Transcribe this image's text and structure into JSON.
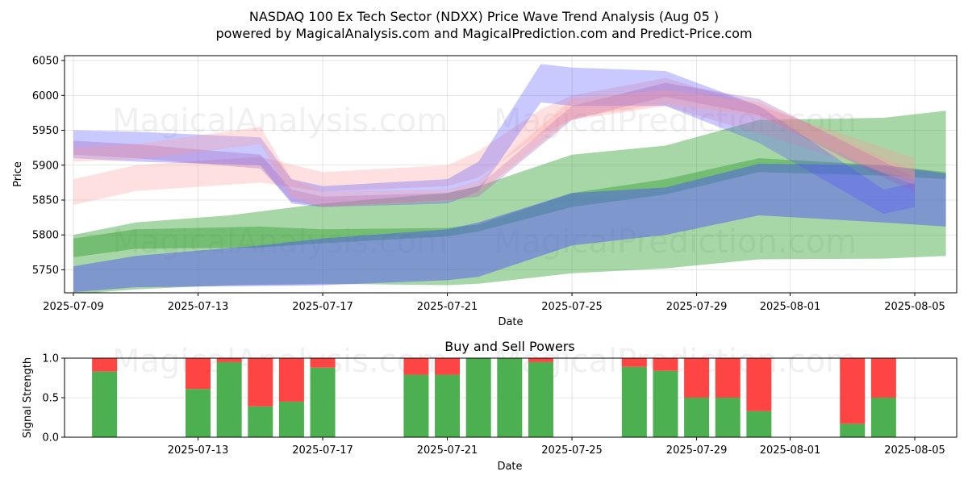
{
  "title_line1": "NASDAQ 100 Ex Tech Sector (NDXX) Price Wave Trend Analysis (Aug 05 )",
  "title_line2": "powered by MagicalAnalysis.com and MagicalPrediction.com and Predict-Price.com",
  "watermarks": [
    "MagicalAnalysis.com",
    "MagicalPrediction.com"
  ],
  "colors": {
    "green": "#4caf50",
    "red": "#ff4444",
    "blue_band": "#4d4dff",
    "red_band": "#ff9999",
    "purple_band": "#9b59b6",
    "green_band": "#2e9d2e"
  },
  "chart_data": [
    {
      "type": "area",
      "title": "",
      "xlabel": "Date",
      "ylabel": "Price",
      "x_ticks": [
        "2025-07-09",
        "2025-07-13",
        "2025-07-17",
        "2025-07-21",
        "2025-07-25",
        "2025-07-29",
        "2025-08-01",
        "2025-08-05"
      ],
      "y_ticks": [
        5750,
        5800,
        5850,
        5900,
        5950,
        6000,
        6050
      ],
      "xlim": [
        "2025-07-08",
        "2025-08-06"
      ],
      "ylim": [
        5717,
        6057
      ],
      "grid": true,
      "series": [
        {
          "color": "green",
          "x": [
            "2025-07-09",
            "2025-07-11",
            "2025-07-14",
            "2025-07-17",
            "2025-07-21",
            "2025-07-22",
            "2025-07-25",
            "2025-07-28",
            "2025-07-31",
            "2025-08-04",
            "2025-08-06"
          ],
          "upper": [
            5800,
            5818,
            5828,
            5845,
            5860,
            5870,
            5915,
            5928,
            5965,
            5968,
            5978
          ],
          "lower": [
            5715,
            5722,
            5728,
            5730,
            5728,
            5730,
            5745,
            5752,
            5765,
            5766,
            5770
          ]
        },
        {
          "color": "green",
          "x": [
            "2025-07-09",
            "2025-07-11",
            "2025-07-15",
            "2025-07-17",
            "2025-07-21",
            "2025-07-22",
            "2025-07-25",
            "2025-07-28",
            "2025-07-31",
            "2025-08-04",
            "2025-08-06"
          ],
          "upper": [
            5795,
            5808,
            5812,
            5808,
            5810,
            5815,
            5860,
            5880,
            5910,
            5900,
            5890
          ],
          "lower": [
            5768,
            5780,
            5782,
            5788,
            5798,
            5805,
            5840,
            5858,
            5890,
            5885,
            5880
          ]
        },
        {
          "color": "blue",
          "x": [
            "2025-07-09",
            "2025-07-11",
            "2025-07-15",
            "2025-07-17",
            "2025-07-21",
            "2025-07-22",
            "2025-07-25",
            "2025-07-28",
            "2025-07-31",
            "2025-08-04",
            "2025-08-06"
          ],
          "upper": [
            5755,
            5770,
            5785,
            5795,
            5808,
            5818,
            5860,
            5868,
            5902,
            5900,
            5888
          ],
          "lower": [
            5718,
            5725,
            5727,
            5728,
            5735,
            5740,
            5785,
            5800,
            5828,
            5818,
            5812
          ]
        },
        {
          "color": "red",
          "x": [
            "2025-07-09",
            "2025-07-11",
            "2025-07-15",
            "2025-07-17",
            "2025-07-21",
            "2025-07-22",
            "2025-07-24",
            "2025-07-25",
            "2025-07-28",
            "2025-07-31",
            "2025-08-04",
            "2025-08-05"
          ],
          "upper": [
            5880,
            5900,
            5912,
            5890,
            5900,
            5920,
            5980,
            6000,
            6025,
            5985,
            5925,
            5910
          ],
          "lower": [
            5843,
            5863,
            5875,
            5862,
            5870,
            5882,
            5945,
            5965,
            5985,
            5945,
            5890,
            5880
          ]
        },
        {
          "color": "blue",
          "x": [
            "2025-07-09",
            "2025-07-11",
            "2025-07-15",
            "2025-07-16",
            "2025-07-17",
            "2025-07-21",
            "2025-07-22",
            "2025-07-24",
            "2025-07-25",
            "2025-07-28",
            "2025-07-31",
            "2025-08-04",
            "2025-08-05"
          ],
          "upper": [
            5950,
            5948,
            5940,
            5880,
            5870,
            5880,
            5905,
            6045,
            6040,
            6035,
            5985,
            5865,
            5875
          ],
          "lower": [
            5910,
            5905,
            5900,
            5845,
            5840,
            5845,
            5862,
            5990,
            5985,
            5985,
            5932,
            5830,
            5840
          ]
        },
        {
          "color": "purple",
          "x": [
            "2025-07-09",
            "2025-07-11",
            "2025-07-15",
            "2025-07-16",
            "2025-07-17",
            "2025-07-21",
            "2025-07-22",
            "2025-07-25",
            "2025-07-28",
            "2025-07-31",
            "2025-08-04",
            "2025-08-05"
          ],
          "upper": [
            5935,
            5930,
            5915,
            5865,
            5855,
            5860,
            5870,
            5985,
            6018,
            5995,
            5905,
            5882
          ],
          "lower": [
            5915,
            5910,
            5895,
            5848,
            5840,
            5850,
            5855,
            5965,
            5998,
            5972,
            5882,
            5862
          ]
        },
        {
          "color": "red",
          "x": [
            "2025-07-09",
            "2025-07-11",
            "2025-07-15",
            "2025-07-16",
            "2025-07-17",
            "2025-07-21",
            "2025-07-22",
            "2025-07-25",
            "2025-07-28",
            "2025-07-31",
            "2025-08-04",
            "2025-08-05"
          ],
          "upper": [
            5925,
            5930,
            5955,
            5880,
            5862,
            5865,
            5878,
            5995,
            6008,
            5990,
            5910,
            5892
          ],
          "lower": [
            5905,
            5908,
            5930,
            5855,
            5840,
            5848,
            5860,
            5968,
            5988,
            5970,
            5888,
            5872
          ]
        }
      ]
    },
    {
      "type": "bar",
      "title": "Buy and Sell Powers",
      "xlabel": "Date",
      "ylabel": "Signal Strength",
      "x_ticks": [
        "2025-07-13",
        "2025-07-17",
        "2025-07-21",
        "2025-07-25",
        "2025-07-29",
        "2025-08-01",
        "2025-08-05"
      ],
      "y_ticks": [
        "0.0",
        "0.5",
        "1.0"
      ],
      "ylim": [
        0,
        1
      ],
      "grid": true,
      "categories": [
        "2025-07-10",
        "2025-07-13",
        "2025-07-14",
        "2025-07-15",
        "2025-07-16",
        "2025-07-17",
        "2025-07-20",
        "2025-07-21",
        "2025-07-22",
        "2025-07-23",
        "2025-07-24",
        "2025-07-27",
        "2025-07-28",
        "2025-07-29",
        "2025-07-30",
        "2025-07-31",
        "2025-08-03",
        "2025-08-04"
      ],
      "series": [
        {
          "name": "buy",
          "color": "green",
          "values": [
            0.83,
            0.61,
            0.95,
            0.39,
            0.45,
            0.88,
            0.79,
            0.79,
            1.0,
            1.0,
            0.95,
            0.89,
            0.84,
            0.5,
            0.5,
            0.33,
            0.17,
            0.5
          ]
        },
        {
          "name": "sell",
          "color": "red",
          "values": [
            0.17,
            0.39,
            0.05,
            0.61,
            0.55,
            0.12,
            0.21,
            0.21,
            0.0,
            0.0,
            0.05,
            0.11,
            0.16,
            0.5,
            0.5,
            0.67,
            0.83,
            0.5
          ]
        }
      ]
    }
  ]
}
